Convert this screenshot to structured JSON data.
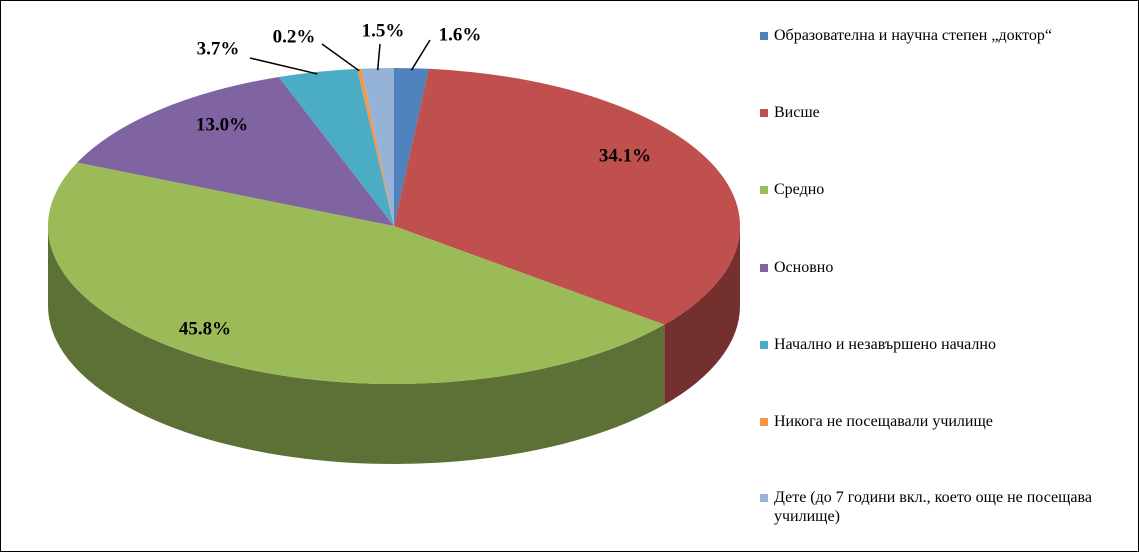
{
  "chart_data": {
    "type": "pie",
    "categories": [
      "Образователна и научна степен „доктор“",
      "Висше",
      "Средно",
      "Основно",
      "Начално и незавършено начално",
      "Никога не посещавали училище",
      "Дете (до 7 години вкл., което още не посещава училище)"
    ],
    "values": [
      1.6,
      34.1,
      45.8,
      13.0,
      3.7,
      0.2,
      1.5
    ],
    "value_labels": [
      "1.6%",
      "34.1%",
      "45.8%",
      "13.0%",
      "3.7%",
      "0.2%",
      "1.5%"
    ],
    "colors": [
      "#4f81bd",
      "#c0504d",
      "#9bbb59",
      "#8064a2",
      "#4bacc6",
      "#f79646",
      "#95b3d7"
    ],
    "legend": "right"
  }
}
